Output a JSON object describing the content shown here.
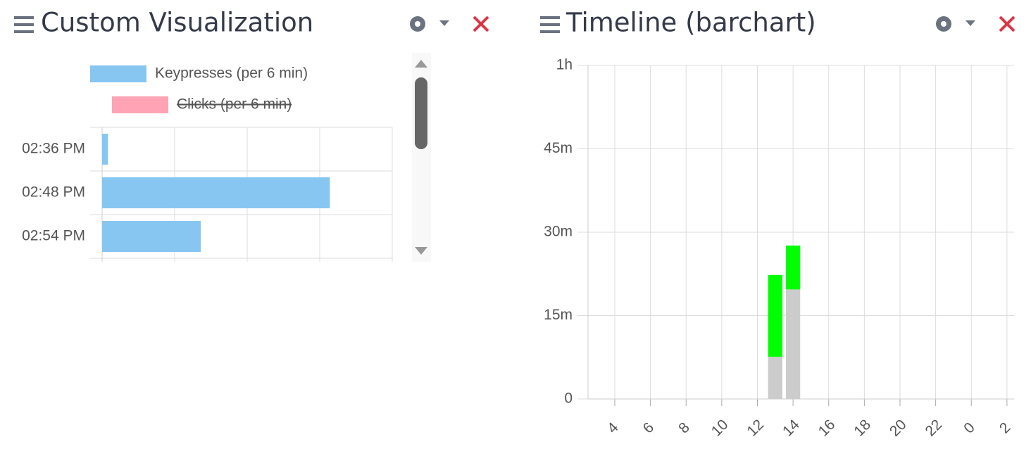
{
  "panels": [
    {
      "title": "Custom Visualization",
      "chart_data": {
        "type": "hbar",
        "categories": [
          "02:36 PM",
          "02:48 PM",
          "02:54 PM"
        ],
        "series": [
          {
            "name": "Keypresses (per 6 min)",
            "color": "#88c6f2",
            "values": [
              0.08,
              3.14,
              1.36
            ]
          },
          {
            "name": "Clicks (per 6 min)",
            "color": "#ffa3b5",
            "hidden": true
          }
        ],
        "xlim": [
          0,
          4
        ],
        "xticks": [
          0,
          1,
          2,
          3,
          4
        ],
        "grid": true
      }
    },
    {
      "title": "Timeline (barchart)",
      "chart_data": {
        "type": "stacked_bar",
        "x": [
          13,
          14
        ],
        "series": [
          {
            "color": "#cccccc",
            "values": [
              7.6,
              19.7
            ]
          },
          {
            "color": "#00ff00",
            "values": [
              14.7,
              7.9
            ]
          }
        ],
        "xlim": [
          2.5,
          26.4
        ],
        "xticks": [
          4,
          6,
          8,
          10,
          12,
          14,
          16,
          18,
          20,
          22,
          {
            "value": 24,
            "label": "0"
          },
          {
            "value": 26,
            "label": "2"
          }
        ],
        "ylim": [
          0,
          60
        ],
        "yticks": [
          {
            "value": 0,
            "label": "0"
          },
          {
            "value": 15,
            "label": "15m"
          },
          {
            "value": 30,
            "label": "30m"
          },
          {
            "value": 45,
            "label": "45m"
          },
          {
            "value": 60,
            "label": "1h"
          }
        ],
        "grid": true
      }
    }
  ]
}
